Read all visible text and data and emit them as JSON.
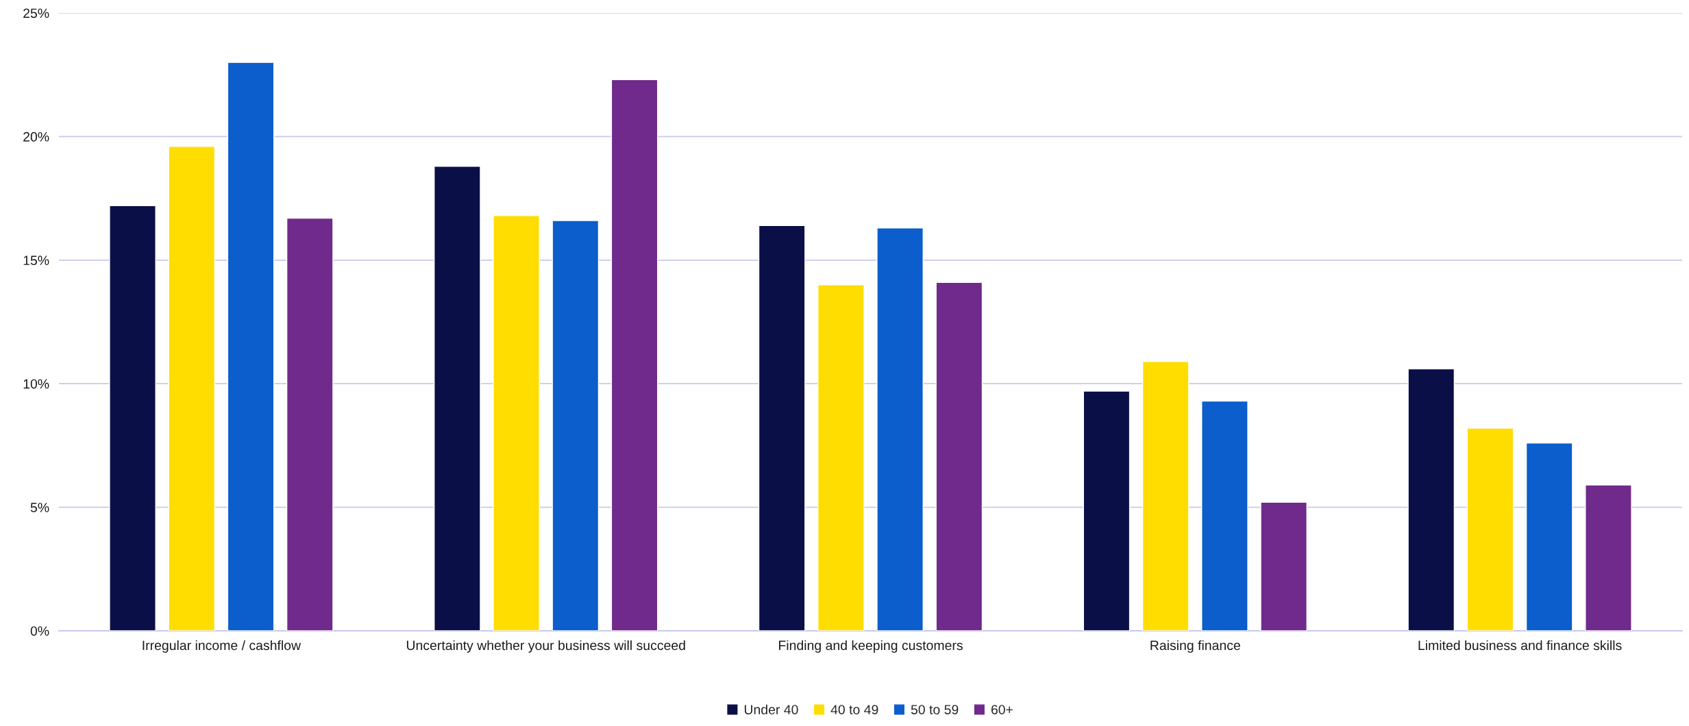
{
  "chart_data": {
    "type": "bar",
    "categories": [
      "Irregular income / cashflow",
      "Uncertainty whether your business will succeed",
      "Finding and keeping customers",
      "Raising finance",
      "Limited business and finance skills"
    ],
    "series": [
      {
        "name": "Under 40",
        "color": "#0b0f47",
        "values": [
          17.2,
          18.8,
          16.4,
          9.7,
          10.6
        ]
      },
      {
        "name": "40 to 49",
        "color": "#ffdd00",
        "values": [
          19.6,
          16.8,
          14.0,
          10.9,
          8.2
        ]
      },
      {
        "name": "50 to 59",
        "color": "#0b5ecb",
        "values": [
          23.0,
          16.6,
          16.3,
          9.3,
          7.6
        ]
      },
      {
        "name": "60+",
        "color": "#6f2a8c",
        "values": [
          16.7,
          22.3,
          14.1,
          5.2,
          5.9
        ]
      }
    ],
    "ylim": [
      0,
      25
    ],
    "yticks": [
      {
        "value": 0,
        "label": "0%"
      },
      {
        "value": 5,
        "label": "5%"
      },
      {
        "value": 10,
        "label": "10%"
      },
      {
        "value": 15,
        "label": "15%"
      },
      {
        "value": 20,
        "label": "20%"
      },
      {
        "value": 25,
        "label": "25%"
      }
    ],
    "grid": "y",
    "legend": "bottom"
  }
}
